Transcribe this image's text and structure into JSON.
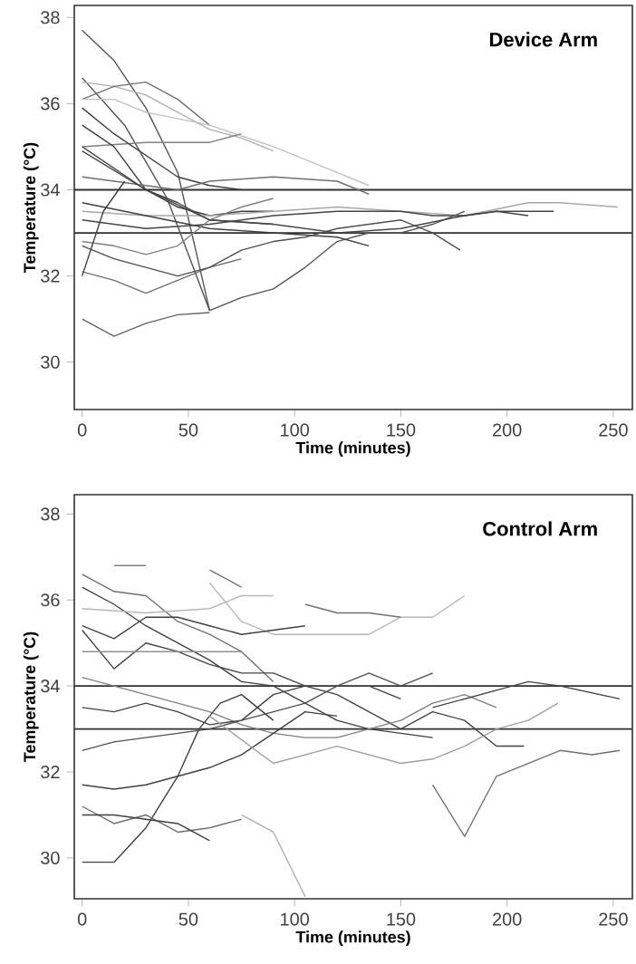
{
  "chart_data": [
    {
      "type": "line",
      "title": "Device Arm",
      "xlabel": "Time (minutes)",
      "ylabel": "Temperature (°C)",
      "xlim": [
        -3.7,
        259
      ],
      "ylim": [
        28.9,
        38.28
      ],
      "xticks": [
        0,
        50,
        100,
        150,
        200,
        250
      ],
      "yticks": [
        30,
        32,
        34,
        36,
        38
      ],
      "marker": "none",
      "line_style": "solid",
      "ref_lines": [
        {
          "axis": "y",
          "value": 34,
          "color": "#303030"
        },
        {
          "axis": "y",
          "value": 33,
          "color": "#303030"
        }
      ],
      "series": [
        {
          "color": "#555555",
          "x": [
            0,
            15,
            30,
            45,
            60,
            75,
            90,
            105,
            120,
            135,
            150,
            165,
            180
          ],
          "values": [
            37.7,
            37.0,
            35.9,
            34.4,
            31.2,
            31.5,
            31.7,
            32.2,
            32.8,
            33.0,
            33.0,
            33.2,
            33.5
          ]
        },
        {
          "color": "#666666",
          "x": [
            0,
            15,
            30,
            45,
            60
          ],
          "values": [
            31.0,
            30.6,
            30.9,
            31.1,
            31.15
          ]
        },
        {
          "color": "#505050",
          "x": [
            0,
            20,
            40,
            60
          ],
          "values": [
            36.6,
            35.5,
            33.8,
            31.2
          ]
        },
        {
          "color": "#b0b0b0",
          "x": [
            0,
            15,
            30,
            45,
            60,
            75,
            90
          ],
          "values": [
            36.5,
            36.4,
            36.2,
            35.8,
            35.4,
            35.2,
            34.9
          ]
        },
        {
          "color": "#707070",
          "x": [
            0,
            15,
            30,
            45,
            60
          ],
          "values": [
            36.1,
            36.4,
            36.5,
            36.1,
            35.5
          ]
        },
        {
          "color": "#c0c0c0",
          "x": [
            0,
            15,
            30,
            60,
            90,
            120,
            135
          ],
          "values": [
            36.1,
            36.1,
            35.8,
            35.5,
            35.0,
            34.4,
            34.1
          ]
        },
        {
          "color": "#808080",
          "x": [
            0,
            30,
            60,
            75
          ],
          "values": [
            35.0,
            35.1,
            35.1,
            35.3
          ]
        },
        {
          "color": "#404040",
          "x": [
            0,
            15,
            30,
            45,
            60,
            75
          ],
          "values": [
            35.9,
            35.3,
            34.8,
            34.3,
            34.1,
            34.0
          ]
        },
        {
          "color": "#404040",
          "x": [
            0,
            15,
            30,
            45,
            60,
            75,
            90
          ],
          "values": [
            35.5,
            35.0,
            34.0,
            33.6,
            33.4,
            33.5,
            33.5
          ]
        },
        {
          "color": "#484848",
          "x": [
            0,
            15,
            30,
            45,
            60,
            90
          ],
          "values": [
            35.0,
            34.5,
            34.0,
            33.7,
            33.3,
            33.2
          ]
        },
        {
          "color": "#707070",
          "x": [
            0,
            15,
            30,
            45,
            60,
            90,
            120,
            135
          ],
          "values": [
            34.3,
            34.2,
            34.1,
            34.0,
            34.2,
            34.3,
            34.2,
            33.9
          ]
        },
        {
          "color": "#a8a8a8",
          "x": [
            0,
            30,
            60,
            90,
            120,
            150,
            180,
            210,
            225,
            252
          ],
          "values": [
            33.5,
            33.4,
            33.4,
            33.5,
            33.6,
            33.5,
            33.4,
            33.7,
            33.7,
            33.6
          ]
        },
        {
          "color": "#454545",
          "x": [
            0,
            30,
            60,
            90,
            120,
            150,
            165,
            180,
            195,
            210
          ],
          "values": [
            33.3,
            33.1,
            33.2,
            33.4,
            33.5,
            33.5,
            33.4,
            33.4,
            33.5,
            33.4
          ]
        },
        {
          "color": "#404040",
          "x": [
            0,
            30,
            60,
            90,
            120,
            135
          ],
          "values": [
            33.7,
            33.4,
            33.1,
            33.0,
            32.9,
            32.7
          ]
        },
        {
          "color": "#707070",
          "x": [
            0,
            15,
            30,
            45,
            60,
            75
          ],
          "values": [
            32.1,
            31.9,
            31.6,
            31.9,
            32.2,
            32.4
          ]
        },
        {
          "color": "#505050",
          "x": [
            0,
            15,
            30,
            45,
            60,
            75,
            90,
            105,
            120,
            135,
            150,
            165,
            178
          ],
          "values": [
            32.7,
            32.4,
            32.2,
            32.0,
            32.2,
            32.6,
            32.8,
            32.9,
            33.1,
            33.2,
            33.3,
            33.0,
            32.6
          ]
        },
        {
          "color": "#808080",
          "x": [
            0,
            15,
            30,
            45,
            60,
            75,
            90
          ],
          "values": [
            32.8,
            32.7,
            32.5,
            32.7,
            33.3,
            33.6,
            33.8
          ]
        },
        {
          "color": "#404040",
          "x": [
            0,
            10,
            20
          ],
          "values": [
            32.0,
            33.5,
            34.2
          ]
        },
        {
          "color": "#454545",
          "x": [
            0,
            30,
            60,
            90,
            120,
            150,
            180,
            195,
            222
          ],
          "values": [
            34.9,
            34.0,
            33.3,
            33.2,
            33.0,
            33.1,
            33.4,
            33.5,
            33.5
          ]
        }
      ]
    },
    {
      "type": "line",
      "title": "Control Arm",
      "xlabel": "Time (minutes)",
      "ylabel": "Temperature (°C)",
      "xlim": [
        -3.7,
        259
      ],
      "ylim": [
        29.05,
        38.45
      ],
      "xticks": [
        0,
        50,
        100,
        150,
        200,
        250
      ],
      "yticks": [
        30,
        32,
        34,
        36,
        38
      ],
      "marker": "none",
      "line_style": "solid",
      "ref_lines": [
        {
          "axis": "y",
          "value": 34,
          "color": "#303030"
        },
        {
          "axis": "y",
          "value": 33,
          "color": "#303030"
        }
      ],
      "series": [
        {
          "color": "#707070",
          "x": [
            0,
            15,
            30,
            45,
            60,
            75,
            90
          ],
          "values": [
            36.6,
            36.2,
            36.1,
            35.5,
            35.2,
            34.8,
            34.1
          ]
        },
        {
          "color": "#808080",
          "x": [
            15,
            30
          ],
          "values": [
            36.8,
            36.8
          ]
        },
        {
          "color": "#707070",
          "x": [
            60,
            75
          ],
          "values": [
            36.7,
            36.3
          ]
        },
        {
          "color": "#b8b8b8",
          "x": [
            60,
            75,
            90,
            105,
            120,
            135,
            150,
            165,
            180
          ],
          "values": [
            36.4,
            35.5,
            35.2,
            35.2,
            35.2,
            35.2,
            35.6,
            35.6,
            36.1
          ]
        },
        {
          "color": "#707070",
          "x": [
            105,
            120,
            135,
            150
          ],
          "values": [
            35.9,
            35.7,
            35.7,
            35.6
          ]
        },
        {
          "color": "#404040",
          "x": [
            0,
            15,
            30,
            45,
            60,
            75,
            90,
            105,
            120,
            135,
            150,
            165
          ],
          "values": [
            36.3,
            35.9,
            35.4,
            35.0,
            34.6,
            34.1,
            34.0,
            33.6,
            33.2,
            33.0,
            32.9,
            32.8
          ]
        },
        {
          "color": "#b8b8b8",
          "x": [
            0,
            30,
            60,
            75,
            90
          ],
          "values": [
            35.8,
            35.7,
            35.8,
            36.1,
            36.1
          ]
        },
        {
          "color": "#404040",
          "x": [
            0,
            15,
            30,
            45,
            60,
            75,
            90,
            105
          ],
          "values": [
            35.4,
            35.1,
            35.6,
            35.6,
            35.4,
            35.2,
            35.3,
            35.4
          ]
        },
        {
          "color": "#454545",
          "x": [
            0,
            15,
            30,
            45,
            60,
            75,
            90,
            105,
            120,
            135,
            150,
            165,
            180,
            195,
            208
          ],
          "values": [
            35.3,
            34.4,
            35.0,
            34.8,
            34.5,
            34.3,
            34.3,
            34.0,
            33.8,
            33.4,
            33.0,
            33.4,
            33.2,
            32.6,
            32.6
          ]
        },
        {
          "color": "#909090",
          "x": [
            0,
            30,
            60,
            75
          ],
          "values": [
            34.8,
            34.8,
            34.8,
            34.8
          ]
        },
        {
          "color": "#808080",
          "x": [
            0,
            15,
            30,
            45,
            60,
            75,
            90,
            105,
            120,
            135,
            150,
            165,
            180,
            195
          ],
          "values": [
            34.2,
            34.0,
            33.8,
            33.6,
            33.4,
            33.1,
            32.9,
            32.8,
            32.8,
            33.0,
            33.2,
            33.6,
            33.8,
            33.5
          ]
        },
        {
          "color": "#454545",
          "x": [
            0,
            15,
            30,
            45,
            60,
            75,
            90,
            105,
            120,
            135,
            150
          ],
          "values": [
            33.5,
            33.4,
            33.6,
            33.4,
            33.1,
            33.2,
            33.8,
            34.0,
            34.0,
            34.0,
            33.7
          ]
        },
        {
          "color": "#505050",
          "x": [
            0,
            15,
            30,
            45,
            60,
            75,
            90,
            105,
            120,
            135,
            150,
            165
          ],
          "values": [
            32.5,
            32.7,
            32.8,
            32.9,
            33.0,
            33.2,
            33.4,
            33.6,
            34.0,
            34.3,
            34.0,
            34.3
          ]
        },
        {
          "color": "#404040",
          "x": [
            0,
            15,
            30,
            45,
            60,
            75,
            90,
            105,
            120
          ],
          "values": [
            31.7,
            31.6,
            31.7,
            31.9,
            32.1,
            32.4,
            32.9,
            33.4,
            33.3
          ]
        },
        {
          "color": "#404040",
          "x": [
            0,
            15,
            30,
            45,
            55,
            65,
            75,
            90
          ],
          "values": [
            29.9,
            29.9,
            30.7,
            31.9,
            33.0,
            33.6,
            33.8,
            33.2
          ]
        },
        {
          "color": "#707070",
          "x": [
            0,
            15,
            30,
            45,
            60,
            75
          ],
          "values": [
            31.2,
            30.8,
            31.0,
            30.6,
            30.7,
            30.9
          ]
        },
        {
          "color": "#404040",
          "x": [
            0,
            15,
            30,
            45,
            60
          ],
          "values": [
            31.0,
            31.0,
            30.9,
            30.8,
            30.4
          ]
        },
        {
          "color": "#b0b0b0",
          "x": [
            75,
            90,
            105
          ],
          "values": [
            31.0,
            30.6,
            29.1
          ]
        },
        {
          "color": "#707070",
          "x": [
            165,
            180,
            195,
            210,
            225,
            240,
            253
          ],
          "values": [
            31.7,
            30.5,
            31.9,
            32.2,
            32.5,
            32.4,
            32.5
          ]
        },
        {
          "color": "#454545",
          "x": [
            165,
            195,
            210,
            225,
            253
          ],
          "values": [
            33.5,
            33.9,
            34.1,
            34.0,
            33.7
          ]
        },
        {
          "color": "#a0a0a0",
          "x": [
            60,
            90,
            120,
            150,
            165,
            180,
            195,
            210,
            224
          ],
          "values": [
            33.3,
            32.2,
            32.6,
            32.2,
            32.3,
            32.6,
            33.0,
            33.2,
            33.6
          ]
        }
      ]
    }
  ]
}
